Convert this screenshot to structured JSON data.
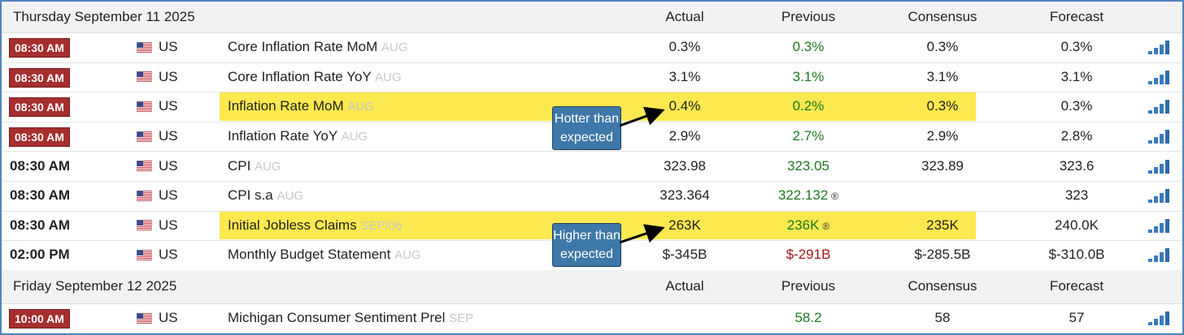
{
  "sections": [
    {
      "date": "Thursday September 11 2025",
      "headers": [
        "Actual",
        "Previous",
        "Consensus",
        "Forecast"
      ],
      "rows": [
        {
          "time": "08:30 AM",
          "time_style": "badge",
          "country": "US",
          "event": "Core Inflation Rate MoM",
          "period": "AUG",
          "actual": "0.3%",
          "previous": "0.3%",
          "previous_color": "#1f7a1f",
          "consensus": "0.3%",
          "forecast": "0.3%"
        },
        {
          "time": "08:30 AM",
          "time_style": "badge",
          "country": "US",
          "event": "Core Inflation Rate YoY",
          "period": "AUG",
          "actual": "3.1%",
          "previous": "3.1%",
          "previous_color": "#1f7a1f",
          "consensus": "3.1%",
          "forecast": "3.1%"
        },
        {
          "time": "08:30 AM",
          "time_style": "badge",
          "country": "US",
          "event": "Inflation Rate MoM",
          "period": "AUG",
          "actual": "0.4%",
          "previous": "0.2%",
          "previous_color": "#1f7a1f",
          "consensus": "0.3%",
          "forecast": "0.3%",
          "highlight": true
        },
        {
          "time": "08:30 AM",
          "time_style": "badge",
          "country": "US",
          "event": "Inflation Rate YoY",
          "period": "AUG",
          "actual": "2.9%",
          "previous": "2.7%",
          "previous_color": "#1f7a1f",
          "consensus": "2.9%",
          "forecast": "2.8%"
        },
        {
          "time": "08:30 AM",
          "time_style": "bold",
          "country": "US",
          "event": "CPI",
          "period": "AUG",
          "actual": "323.98",
          "previous": "323.05",
          "previous_color": "#1f7a1f",
          "consensus": "323.89",
          "forecast": "323.6"
        },
        {
          "time": "08:30 AM",
          "time_style": "bold",
          "country": "US",
          "event": "CPI s.a",
          "period": "AUG",
          "actual": "323.364",
          "previous": "322.132",
          "previous_mark": "®",
          "previous_color": "#1f7a1f",
          "forecast": "323"
        },
        {
          "time": "08:30 AM",
          "time_style": "bold",
          "country": "US",
          "event": "Initial Jobless Claims",
          "period": "SEP/06",
          "actual": "263K",
          "previous": "236K",
          "previous_mark": "®",
          "previous_color": "#1f7a1f",
          "consensus": "235K",
          "forecast": "240.0K",
          "highlight": true
        },
        {
          "time": "02:00 PM",
          "time_style": "bold",
          "country": "US",
          "event": "Monthly Budget Statement",
          "period": "AUG",
          "actual": "$-345B",
          "previous": "$-291B",
          "previous_color": "#a01818",
          "consensus": "$-285.5B",
          "forecast": "$-310.0B"
        }
      ]
    },
    {
      "date": "Friday September 12 2025",
      "headers": [
        "Actual",
        "Previous",
        "Consensus",
        "Forecast"
      ],
      "rows": [
        {
          "time": "10:00 AM",
          "time_style": "badge",
          "country": "US",
          "event": "Michigan Consumer Sentiment Prel",
          "period": "SEP",
          "previous": "58.2",
          "previous_color": "#1f7a1f",
          "consensus": "58",
          "forecast": "57"
        }
      ]
    }
  ],
  "callouts": [
    {
      "text": "Hotter than expected"
    },
    {
      "text": "Higher than expected"
    }
  ]
}
